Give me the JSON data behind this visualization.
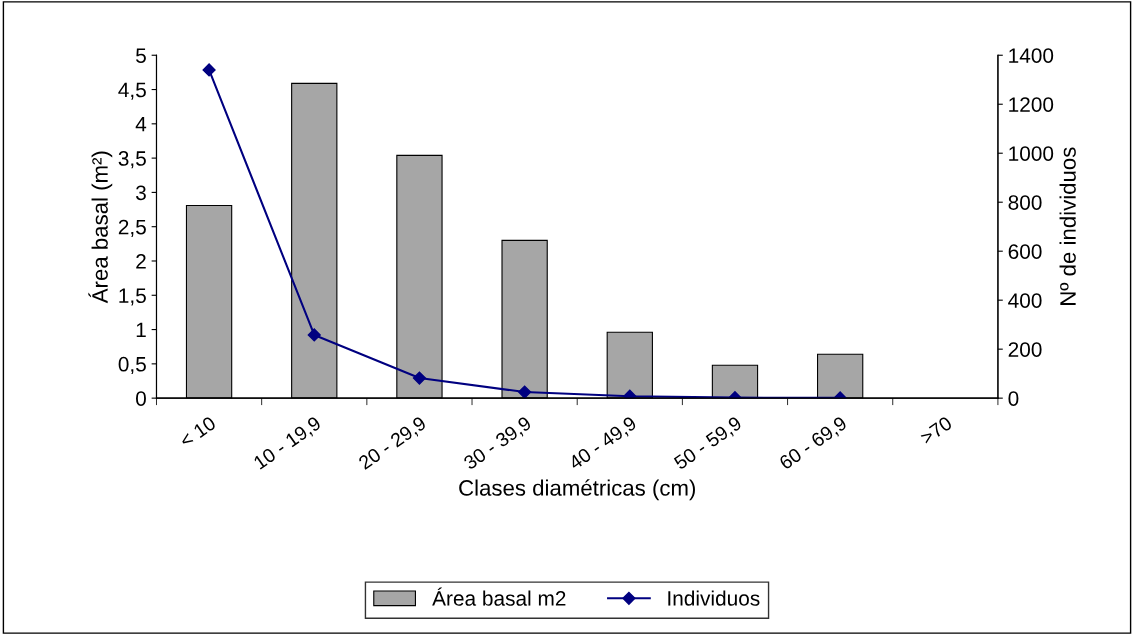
{
  "chart_data": {
    "type": "bar",
    "xlabel": "Clases diamétricas (cm)",
    "ylabel": "Área basal (m²)",
    "y2label": "Nº de individuos",
    "categories": [
      "< 10",
      "10 - 19,9",
      "20 - 29,9",
      "30 - 39,9",
      "40 - 49,9",
      "50 - 59,9",
      "60 - 69,9",
      ">70"
    ],
    "series": [
      {
        "name": "Área basal m2",
        "color": "#a6a6a6",
        "values": [
          2.81,
          4.59,
          3.54,
          2.3,
          0.96,
          0.48,
          0.64,
          null
        ]
      },
      {
        "name": "Individuos",
        "type": "line",
        "axis": "y2",
        "color": "#000080",
        "marker": "diamond",
        "values": [
          1340,
          258,
          82,
          25,
          8,
          2,
          1,
          null
        ]
      }
    ],
    "ylim": [
      0,
      5
    ],
    "yticks": [
      0,
      {
        "value": 0.5,
        "label": "0,5"
      },
      1,
      {
        "value": 1.5,
        "label": "1,5"
      },
      2,
      {
        "value": 2.5,
        "label": "2,5"
      },
      3,
      {
        "value": 3.5,
        "label": "3,5"
      },
      4,
      {
        "value": 4.5,
        "label": "4,5"
      },
      5
    ],
    "y2lim": [
      0,
      1400
    ],
    "y2ticks": [
      0,
      200,
      400,
      600,
      800,
      1000,
      1200,
      1400
    ],
    "legend": "bottom",
    "grid": false
  }
}
